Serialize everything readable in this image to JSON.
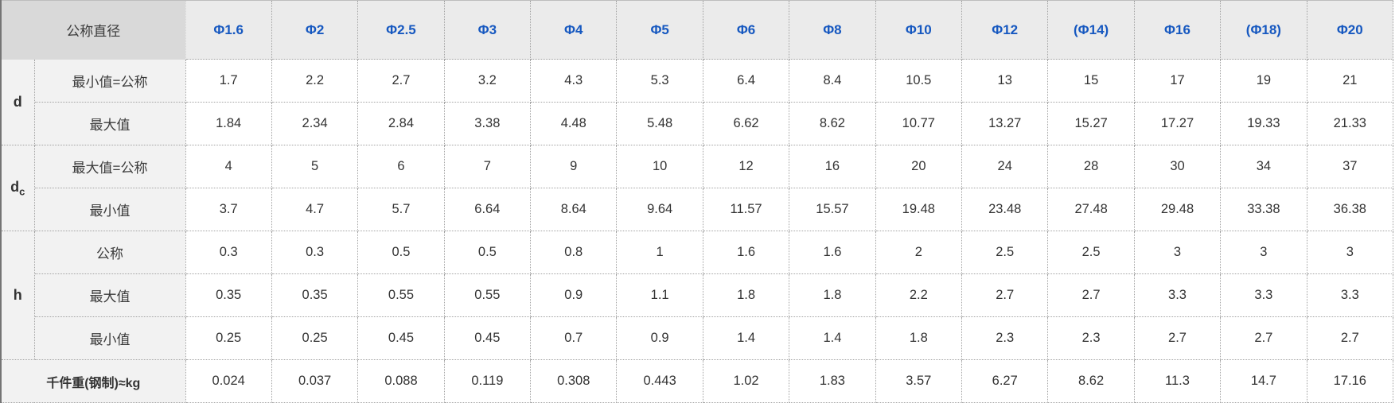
{
  "colors": {
    "corner_bg": "#d9d9d9",
    "header_bg": "#ebebeb",
    "label_bg": "#f2f2f2",
    "header_text": "#1658c0",
    "body_text": "#333333",
    "border_dotted": "#a3a3a3",
    "border_left": "#757575"
  },
  "table": {
    "corner_label": "公称直径",
    "columns": [
      "Φ1.6",
      "Φ2",
      "Φ2.5",
      "Φ3",
      "Φ4",
      "Φ5",
      "Φ6",
      "Φ8",
      "Φ10",
      "Φ12",
      "(Φ14)",
      "Φ16",
      "(Φ18)",
      "Φ20"
    ],
    "groups": [
      {
        "label": {
          "base": "d",
          "sub": ""
        },
        "rows": [
          {
            "label": "最小值=公称",
            "values": [
              "1.7",
              "2.2",
              "2.7",
              "3.2",
              "4.3",
              "5.3",
              "6.4",
              "8.4",
              "10.5",
              "13",
              "15",
              "17",
              "19",
              "21"
            ]
          },
          {
            "label": "最大值",
            "values": [
              "1.84",
              "2.34",
              "2.84",
              "3.38",
              "4.48",
              "5.48",
              "6.62",
              "8.62",
              "10.77",
              "13.27",
              "15.27",
              "17.27",
              "19.33",
              "21.33"
            ]
          }
        ]
      },
      {
        "label": {
          "base": "d",
          "sub": "c"
        },
        "rows": [
          {
            "label": "最大值=公称",
            "values": [
              "4",
              "5",
              "6",
              "7",
              "9",
              "10",
              "12",
              "16",
              "20",
              "24",
              "28",
              "30",
              "34",
              "37"
            ]
          },
          {
            "label": "最小值",
            "values": [
              "3.7",
              "4.7",
              "5.7",
              "6.64",
              "8.64",
              "9.64",
              "11.57",
              "15.57",
              "19.48",
              "23.48",
              "27.48",
              "29.48",
              "33.38",
              "36.38"
            ]
          }
        ]
      },
      {
        "label": {
          "base": "h",
          "sub": ""
        },
        "rows": [
          {
            "label": "公称",
            "values": [
              "0.3",
              "0.3",
              "0.5",
              "0.5",
              "0.8",
              "1",
              "1.6",
              "1.6",
              "2",
              "2.5",
              "2.5",
              "3",
              "3",
              "3"
            ]
          },
          {
            "label": "最大值",
            "values": [
              "0.35",
              "0.35",
              "0.55",
              "0.55",
              "0.9",
              "1.1",
              "1.8",
              "1.8",
              "2.2",
              "2.7",
              "2.7",
              "3.3",
              "3.3",
              "3.3"
            ]
          },
          {
            "label": "最小值",
            "values": [
              "0.25",
              "0.25",
              "0.45",
              "0.45",
              "0.7",
              "0.9",
              "1.4",
              "1.4",
              "1.8",
              "2.3",
              "2.3",
              "2.7",
              "2.7",
              "2.7"
            ]
          }
        ]
      }
    ],
    "footer": {
      "label": "千件重(钢制)≈kg",
      "values": [
        "0.024",
        "0.037",
        "0.088",
        "0.119",
        "0.308",
        "0.443",
        "1.02",
        "1.83",
        "3.57",
        "6.27",
        "8.62",
        "11.3",
        "14.7",
        "17.16"
      ]
    }
  }
}
